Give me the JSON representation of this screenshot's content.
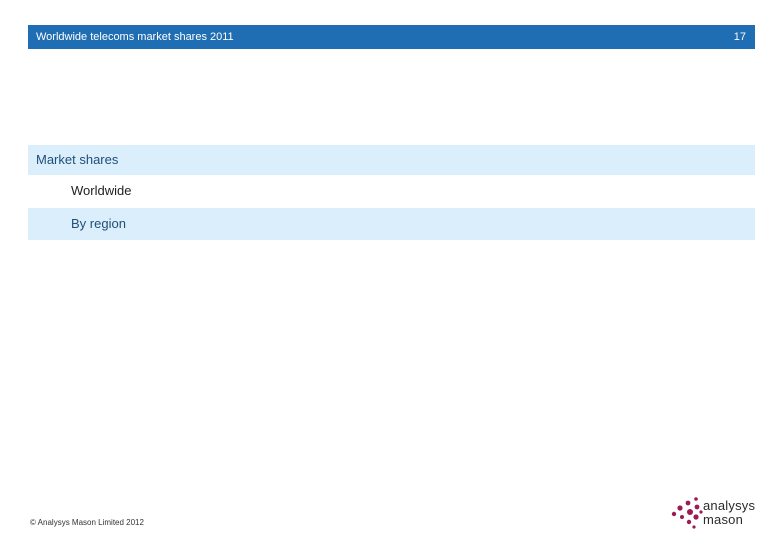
{
  "header": {
    "title": "Worldwide telecoms market shares 2011",
    "page_number": "17"
  },
  "agenda": {
    "items": [
      {
        "label": "Market shares"
      },
      {
        "label": "Worldwide"
      },
      {
        "label": "By region"
      }
    ]
  },
  "footer": {
    "copyright": "© Analysys Mason Limited 2012"
  },
  "logo": {
    "line1": "analysys",
    "line2": "mason",
    "accent_color": "#9b1c55"
  },
  "colors": {
    "header_bar": "#1f6db3",
    "highlight_row": "#dbeefb"
  }
}
